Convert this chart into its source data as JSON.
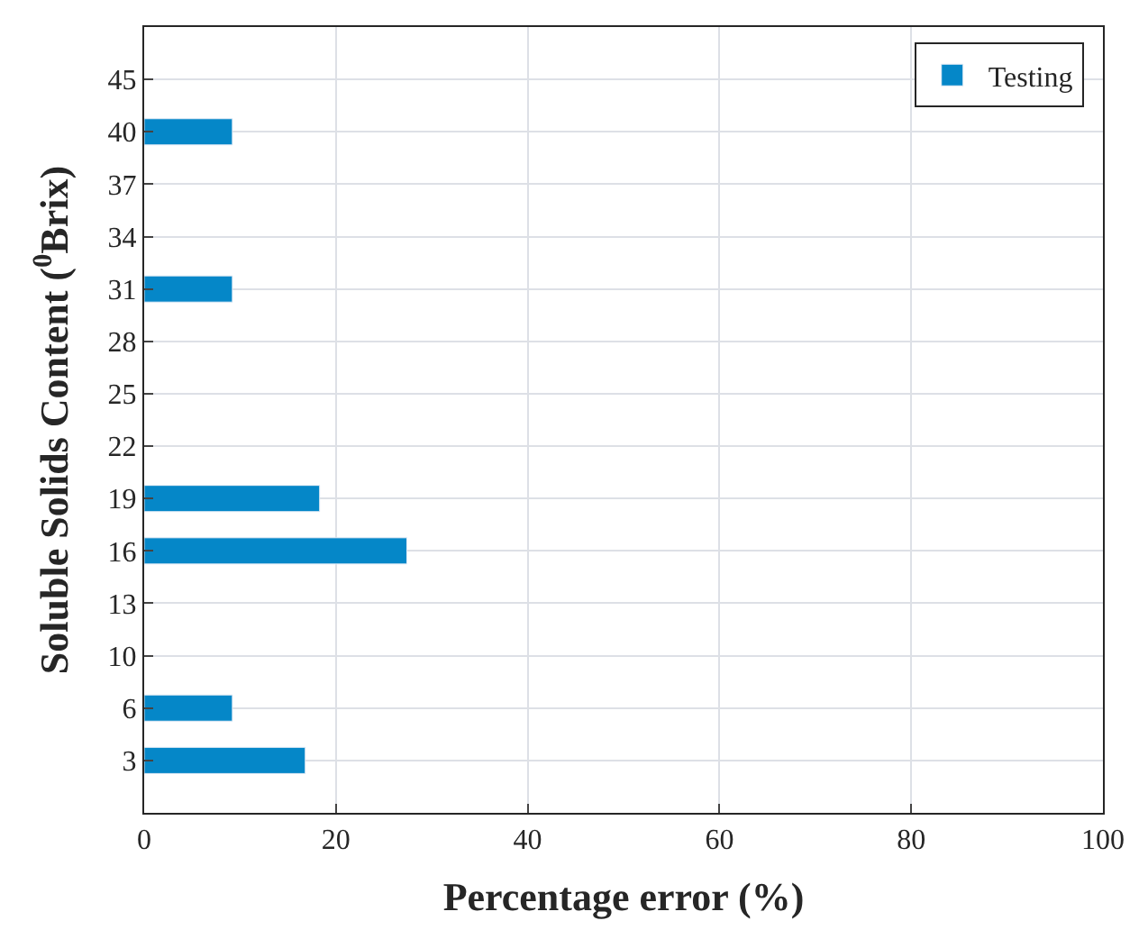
{
  "chart_data": {
    "type": "bar",
    "orientation": "horizontal",
    "xlabel": "Percentage error (%)",
    "ylabel": "Soluble Solids Content ($^{0}$Brix)",
    "categories": [
      "45",
      "40",
      "37",
      "34",
      "31",
      "28",
      "25",
      "22",
      "19",
      "16",
      "13",
      "10",
      "6",
      "3"
    ],
    "series": [
      {
        "name": "Testing",
        "color": "#0587c8",
        "values": [
          null,
          9.2,
          null,
          null,
          9.2,
          null,
          null,
          null,
          18.3,
          27.4,
          null,
          null,
          9.2,
          16.8
        ]
      }
    ],
    "xlim": [
      0,
      100
    ],
    "xticks": [
      0,
      20,
      40,
      60,
      80,
      100
    ],
    "grid": true,
    "legend": "top right"
  }
}
